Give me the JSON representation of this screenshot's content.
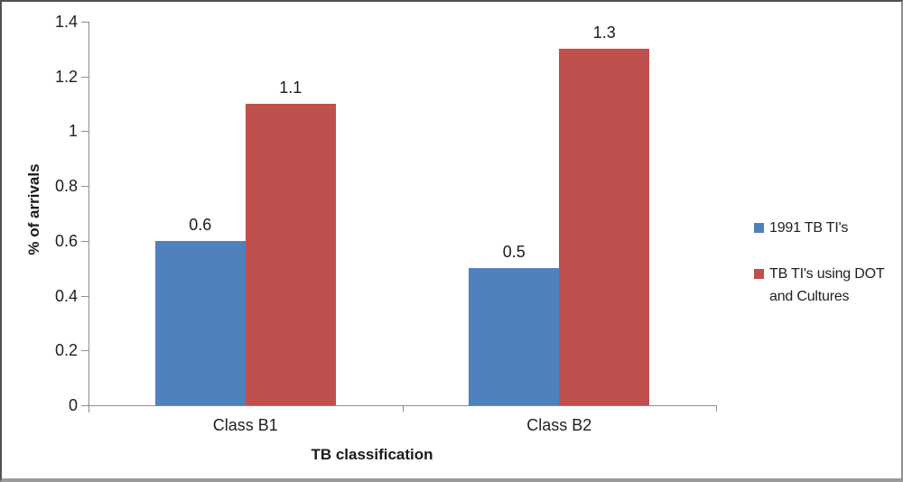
{
  "chart_data": {
    "type": "bar",
    "categories": [
      "Class B1",
      "Class B2"
    ],
    "series": [
      {
        "name": "1991 TB TI's",
        "color": "#4f81bd",
        "values": [
          0.6,
          0.5
        ],
        "labels": [
          "0.6",
          "0.5"
        ]
      },
      {
        "name": "TB TI's using DOT and Cultures",
        "color": "#c0504d",
        "values": [
          1.1,
          1.3
        ],
        "labels": [
          "1.1",
          "1.3"
        ]
      }
    ],
    "xlabel": "TB classification",
    "ylabel": "% of arrivals",
    "ylim": [
      0,
      1.4
    ],
    "ytick_labels": [
      "0",
      "0.2",
      "0.4",
      "0.6",
      "0.8",
      "1",
      "1.2",
      "1.4"
    ],
    "grid": false,
    "legend_position": "right",
    "data_labels_shown": true
  },
  "legend": {
    "entries": [
      {
        "swatch_color": "#4f81bd",
        "lines": [
          "1991 TB TI's"
        ]
      },
      {
        "swatch_color": "#c0504d",
        "lines": [
          "TB TI's using DOT",
          "and Cultures"
        ]
      }
    ]
  }
}
